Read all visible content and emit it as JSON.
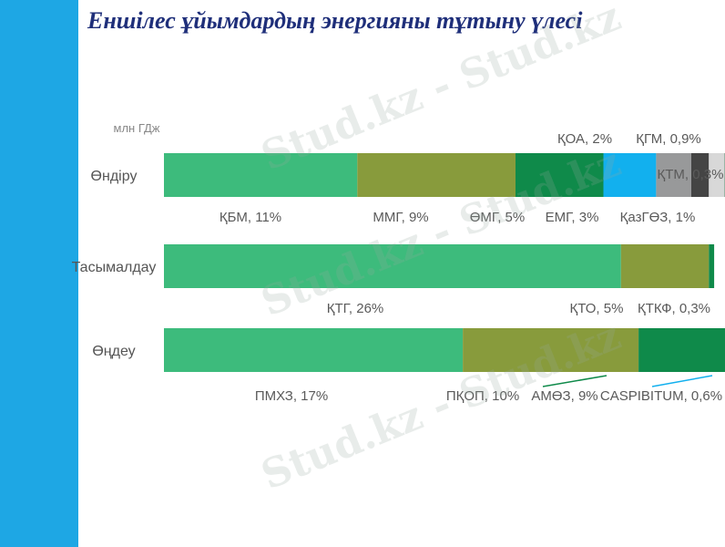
{
  "slide": {
    "title": "Еншілес ұйымдардың энергияны тұтыну үлесі",
    "accent": "#1ea7e4"
  },
  "watermark": {
    "text": "Stud.kz - Stud.kz"
  },
  "chart_data": {
    "type": "bar",
    "stacked": true,
    "orientation": "horizontal",
    "unit_label": "млн ГДж",
    "categories": [
      "Өндіру",
      "Тасымалдау",
      "Өңдеу"
    ],
    "rows": [
      {
        "category": "Өндіру",
        "segments": [
          {
            "label": "ҚБМ, 11%",
            "value": 11,
            "color": "#3dbb7c"
          },
          {
            "label": "ММГ, 9%",
            "value": 9,
            "color": "#889b3c"
          },
          {
            "label": "ӨМГ, 5%",
            "value": 5,
            "color": "#0f8a4a"
          },
          {
            "label": "ЕМГ, 3%",
            "value": 3,
            "color": "#12b0ee"
          },
          {
            "label": "ҚОА, 2%",
            "value": 2,
            "color": "#98999a"
          },
          {
            "label": "ҚазГӨЗ, 1%",
            "value": 1,
            "color": "#444444"
          },
          {
            "label": "ҚГМ, 0,9%",
            "value": 0.9,
            "color": "#d8d8d8"
          },
          {
            "label": "ҚТМ, 0,3%",
            "value": 0.3,
            "color": "#0b5d30"
          }
        ]
      },
      {
        "category": "Тасымалдау",
        "segments": [
          {
            "label": "ҚТГ, 26%",
            "value": 26,
            "color": "#3dbb7c"
          },
          {
            "label": "ҚТО, 5%",
            "value": 5,
            "color": "#889b3c"
          },
          {
            "label": "ҚТКФ, 0,3%",
            "value": 0.3,
            "color": "#0f8a4a"
          }
        ]
      },
      {
        "category": "Өңдеу",
        "segments": [
          {
            "label": "ПМХЗ, 17%",
            "value": 17,
            "color": "#3dbb7c"
          },
          {
            "label": "ПҚОП, 10%",
            "value": 10,
            "color": "#889b3c"
          },
          {
            "label": "АМӨЗ, 9%",
            "value": 9,
            "color": "#0f8a4a"
          },
          {
            "label": "CASPIBITUM, 0,6%",
            "value": 0.6,
            "color": "#12b0ee"
          }
        ]
      }
    ]
  }
}
